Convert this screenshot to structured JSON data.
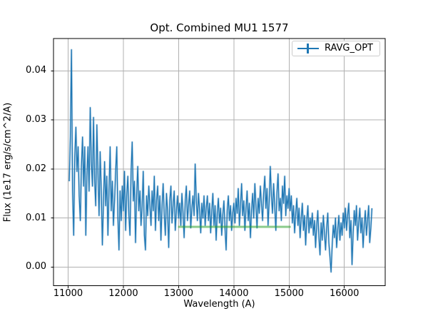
{
  "figure": {
    "title": "Opt. Combined MU1 1577",
    "xlabel": "Wavelength (A)",
    "ylabel": "Flux (1e17 erg/s/cm^2/A)"
  },
  "legend": {
    "position": "upper right",
    "entries": [
      {
        "label": "RAVG_OPT",
        "marker": "errorbar-icon",
        "color": "#1f77b4"
      }
    ]
  },
  "colors": {
    "line": "#1f77b4",
    "line_halo": "rgba(31,119,180,0.28)",
    "avg_line": "#2ca02c",
    "grid": "#b0b0b0",
    "spine": "#000000",
    "background": "#ffffff"
  },
  "chart_data": {
    "type": "line",
    "title": "Opt. Combined MU1 1577",
    "xlabel": "Wavelength (A)",
    "ylabel": "Flux (1e17 erg/s/cm^2/A)",
    "xlim": [
      10735,
      16740
    ],
    "ylim": [
      -0.0038,
      0.0466
    ],
    "grid": true,
    "legend_position": "upper right",
    "x_ticks": {
      "values": [
        11000,
        12000,
        13000,
        14000,
        15000,
        16000
      ],
      "labels": [
        "11000",
        "12000",
        "13000",
        "14000",
        "15000",
        "16000"
      ]
    },
    "y_ticks": {
      "values": [
        0.0,
        0.01,
        0.02,
        0.03,
        0.04
      ],
      "labels": [
        "0.00",
        "0.01",
        "0.02",
        "0.03",
        "0.04"
      ]
    },
    "series": [
      {
        "name": "RAVG_OPT",
        "color": "#1f77b4",
        "x_start": 11020,
        "x_step": 20,
        "values": [
          0.0175,
          0.0265,
          0.0443,
          0.0155,
          0.0065,
          0.0225,
          0.0285,
          0.0195,
          0.0245,
          0.0145,
          0.0095,
          0.0205,
          0.0265,
          0.0165,
          0.0245,
          0.0065,
          0.0185,
          0.0245,
          0.0155,
          0.0325,
          0.0215,
          0.0165,
          0.0305,
          0.0175,
          0.0125,
          0.029,
          0.0195,
          0.0105,
          0.0235,
          0.0155,
          0.0045,
          0.0135,
          0.0215,
          0.0125,
          0.0185,
          0.0065,
          0.0155,
          0.0245,
          0.0115,
          0.0175,
          0.0085,
          0.0135,
          0.0195,
          0.0245,
          0.0105,
          0.0035,
          0.0155,
          0.0095,
          0.0165,
          0.0115,
          0.0195,
          0.0075,
          0.0145,
          0.0185,
          0.0105,
          0.0065,
          0.0195,
          0.0255,
          0.0135,
          0.0175,
          0.005,
          0.0145,
          0.0205,
          0.0115,
          0.0155,
          0.0085,
          0.0125,
          0.0195,
          0.0065,
          0.0035,
          0.0145,
          0.0105,
          0.0165,
          0.0125,
          0.0085,
          0.0155,
          0.0115,
          0.0185,
          0.0075,
          0.0135,
          0.0165,
          0.0095,
          0.0145,
          0.0055,
          0.0125,
          0.017,
          0.0105,
          0.0065,
          0.015,
          0.0115,
          0.004,
          0.0135,
          0.0165,
          0.009,
          0.0125,
          0.0155,
          0.0075,
          0.0115,
          0.0145,
          0.01,
          0.013,
          0.0085,
          0.015,
          0.011,
          0.006,
          0.0135,
          0.0165,
          0.0095,
          0.0125,
          0.0155,
          0.008,
          0.012,
          0.0145,
          0.0105,
          0.021,
          0.0135,
          0.0095,
          0.015,
          0.0115,
          0.007,
          0.013,
          0.01,
          0.0145,
          0.0085,
          0.012,
          0.0145,
          0.0095,
          0.013,
          0.007,
          0.0115,
          0.015,
          0.0085,
          0.0125,
          0.0055,
          0.011,
          0.014,
          0.009,
          0.012,
          0.0065,
          0.0105,
          0.0135,
          0.008,
          0.0035,
          0.0115,
          0.0145,
          0.0095,
          0.0125,
          0.0075,
          0.011,
          0.013,
          0.009,
          0.014,
          0.011,
          0.016,
          0.0085,
          0.0125,
          0.017,
          0.0105,
          0.0135,
          0.0075,
          0.012,
          0.0155,
          0.0095,
          0.013,
          0.006,
          0.0115,
          0.015,
          0.01,
          0.017,
          0.0125,
          0.008,
          0.014,
          0.011,
          0.0165,
          0.013,
          0.0095,
          0.015,
          0.0185,
          0.012,
          0.016,
          0.0085,
          0.0135,
          0.0205,
          0.0145,
          0.011,
          0.017,
          0.0125,
          0.0075,
          0.015,
          0.019,
          0.0115,
          0.014,
          0.0095,
          0.0165,
          0.013,
          0.0185,
          0.0105,
          0.0145,
          0.012,
          0.016,
          0.0115,
          0.0145,
          0.009,
          0.0125,
          0.007,
          0.011,
          0.014,
          0.0085,
          0.012,
          0.006,
          0.01,
          0.013,
          0.0075,
          0.0105,
          0.0045,
          0.0095,
          0.0125,
          0.007,
          0.01,
          0.008,
          0.011,
          0.0065,
          0.0095,
          0.004,
          0.0085,
          0.0115,
          0.006,
          0.0025,
          0.009,
          0.0055,
          0.0105,
          0.007,
          0.0035,
          0.008,
          0.011,
          0.005,
          0.002,
          -0.001,
          0.0045,
          0.0085,
          0.006,
          0.01,
          0.004,
          0.0075,
          0.0105,
          0.0055,
          0.009,
          0.0065,
          0.011,
          0.008,
          0.012,
          0.0075,
          0.0105,
          0.013,
          0.006,
          0.0095,
          0.0005,
          0.007,
          0.0115,
          0.0085,
          0.0125,
          0.0055,
          0.009,
          0.012,
          0.007,
          0.01,
          0.004,
          0.0085,
          0.0115,
          0.0065,
          0.0095,
          0.0125,
          0.005,
          0.008,
          0.012
        ]
      }
    ],
    "avg_line": {
      "name": "running-average-segment",
      "x_range": [
        12990,
        15030
      ],
      "y": 0.0082,
      "color": "#2ca02c",
      "opacity": 0.55
    }
  }
}
